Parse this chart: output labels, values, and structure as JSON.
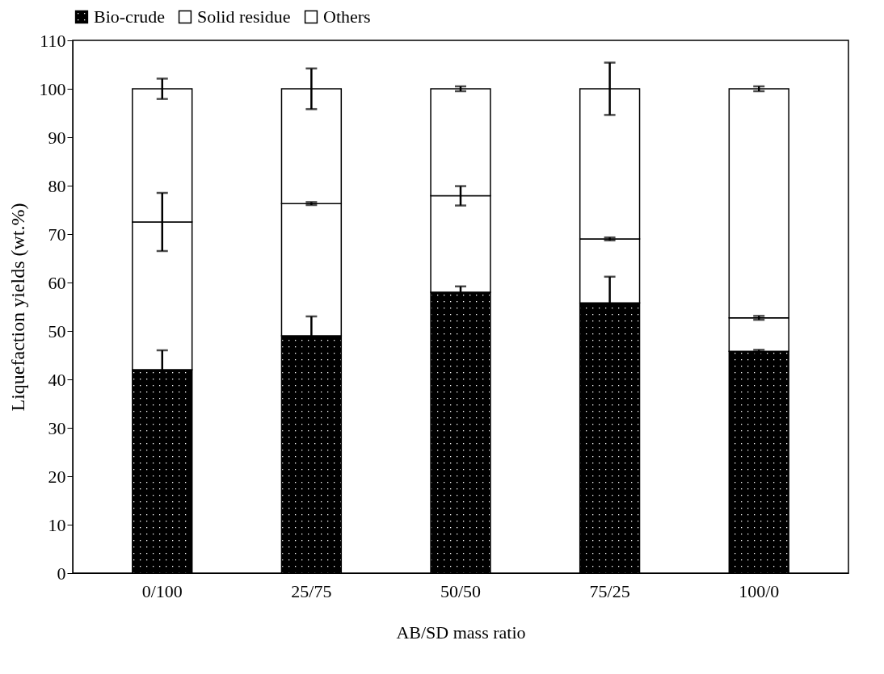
{
  "chart_data": {
    "type": "bar",
    "stacked": true,
    "xlabel": "AB/SD mass ratio",
    "ylabel": "Liquefaction yields (wt.%)",
    "categories": [
      "0/100",
      "25/75",
      "50/50",
      "75/25",
      "100/0"
    ],
    "series": [
      {
        "name": "Bio-crude",
        "color": "#000000",
        "values": [
          42,
          49,
          58,
          55.8,
          45.8
        ],
        "errors": [
          4,
          4,
          1.2,
          5.4,
          0.3
        ]
      },
      {
        "name": "Solid residue",
        "color": "#ffffff",
        "values": [
          30.5,
          27.3,
          19.9,
          13.2,
          6.9
        ],
        "errors": [
          6,
          0.3,
          2,
          0.3,
          0.4
        ]
      },
      {
        "name": "Others",
        "color": "#ffffff",
        "values": [
          27.5,
          23.7,
          22.1,
          31,
          47.3
        ],
        "errors": [
          2.1,
          4.2,
          0.5,
          5.4,
          0.5
        ]
      }
    ],
    "ylim": [
      0,
      110
    ],
    "yticks": [
      0,
      10,
      20,
      30,
      40,
      50,
      60,
      70,
      80,
      90,
      100,
      110
    ],
    "legend": "top"
  }
}
